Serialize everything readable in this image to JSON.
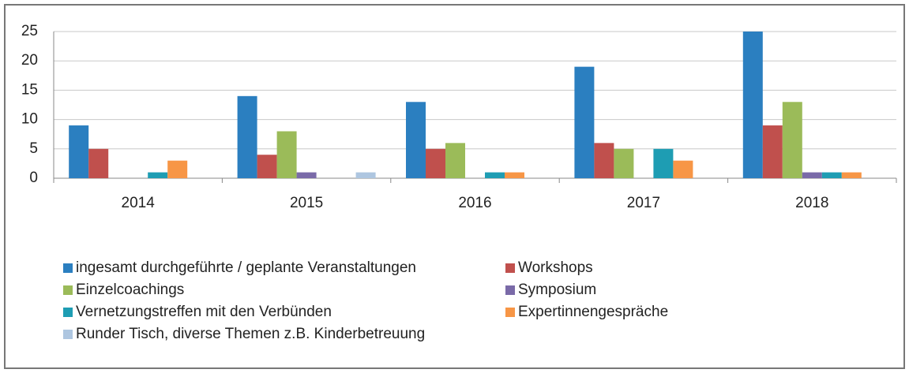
{
  "chart_data": {
    "type": "bar",
    "categories": [
      "2014",
      "2015",
      "2016",
      "2017",
      "2018"
    ],
    "series": [
      {
        "name": "ingesamt durchgeführte / geplante Veranstaltungen",
        "color": "#2b7fc0",
        "values": [
          9,
          14,
          13,
          19,
          25
        ]
      },
      {
        "name": "Workshops",
        "color": "#c0504d",
        "values": [
          5,
          4,
          5,
          6,
          9
        ]
      },
      {
        "name": "Einzelcoachings",
        "color": "#9bbb59",
        "values": [
          0,
          8,
          6,
          5,
          13
        ]
      },
      {
        "name": "Symposium",
        "color": "#7a6aa8",
        "values": [
          0,
          1,
          0,
          0,
          1
        ]
      },
      {
        "name": "Vernetzungstreffen mit den Verbünden",
        "color": "#1e9db3",
        "values": [
          1,
          0,
          1,
          5,
          1
        ]
      },
      {
        "name": "Expertinnengespräche",
        "color": "#f79646",
        "values": [
          3,
          0,
          1,
          3,
          1
        ]
      },
      {
        "name": "Runder Tisch, diverse Themen z.B. Kinderbetreuung",
        "color": "#aec6e0",
        "values": [
          0,
          1,
          0,
          0,
          0
        ]
      }
    ],
    "ylim": [
      0,
      25
    ],
    "yticks": [
      0,
      5,
      10,
      15,
      20,
      25
    ],
    "grid": true,
    "legend": "bottom"
  }
}
